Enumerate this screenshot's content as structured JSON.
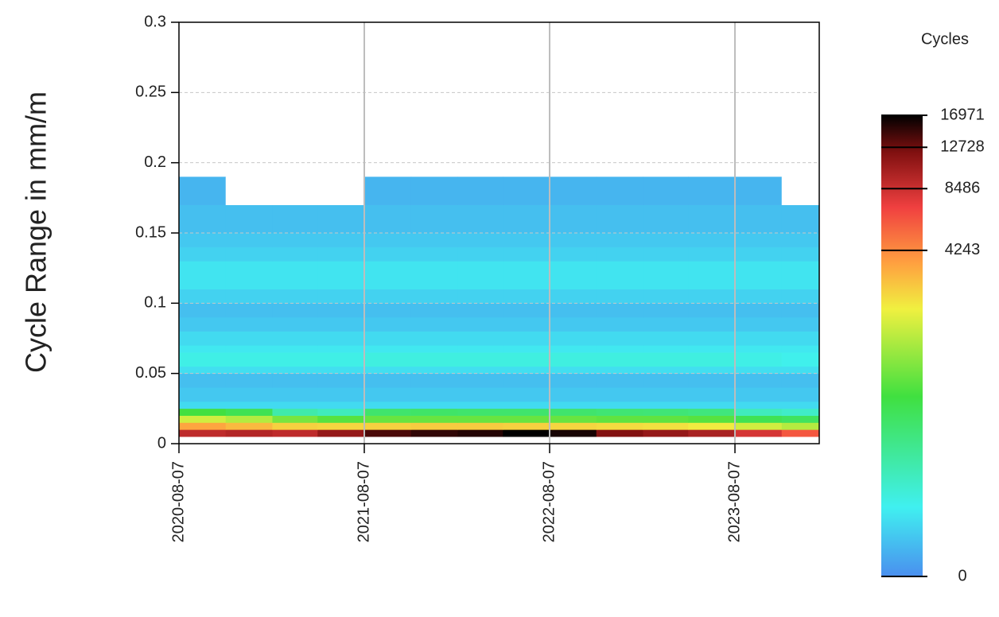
{
  "chart_data": {
    "type": "heatmap",
    "y_label": "Cycle Range in mm/m",
    "colorbar_title": "Cycles",
    "xlim": [
      "2020-08-07",
      "2024-01-20"
    ],
    "xticks": [
      "2020-08-07",
      "2021-08-07",
      "2022-08-07",
      "2023-08-07"
    ],
    "ylim": [
      0,
      0.3
    ],
    "yticks": [
      0,
      0.05,
      0.1,
      0.15,
      0.2,
      0.25,
      0.3
    ],
    "grid": true,
    "zlim": [
      0,
      16971
    ],
    "colorbar_ticks": [
      0,
      4243,
      8486,
      12728,
      16971
    ],
    "color_scale_power": 0.25,
    "colormap": [
      [
        0,
        "#4a8fef"
      ],
      [
        0.15,
        "#40f0f0"
      ],
      [
        0.39,
        "#40e040"
      ],
      [
        0.58,
        "#f0f040"
      ],
      [
        0.68,
        "#ffa040"
      ],
      [
        0.8,
        "#f04040"
      ],
      [
        0.92,
        "#801010"
      ],
      [
        1,
        "#000000"
      ]
    ],
    "xbins": [
      "2020-08-07",
      "2020-11-07",
      "2021-02-07",
      "2021-05-07",
      "2021-08-07",
      "2021-11-07",
      "2022-02-07",
      "2022-05-07",
      "2022-08-07",
      "2022-11-07",
      "2023-02-07",
      "2023-05-07",
      "2023-08-07",
      "2023-11-07",
      "2024-01-20"
    ],
    "ybins": [
      0.005,
      0.01,
      0.015,
      0.02,
      0.025,
      0.03,
      0.04,
      0.05,
      0.055,
      0.065,
      0.07,
      0.08,
      0.09,
      0.1,
      0.11,
      0.13,
      0.14,
      0.15,
      0.17,
      0.19
    ],
    "z": [
      [
        9000,
        9500,
        9000,
        11000,
        14000,
        15000,
        15500,
        16971,
        16000,
        12000,
        11000,
        10000,
        8000,
        6000
      ],
      [
        3500,
        3000,
        2500,
        2400,
        2500,
        2600,
        2600,
        2500,
        2400,
        2300,
        2200,
        2000,
        1500,
        1200
      ],
      [
        1500,
        1200,
        700,
        500,
        600,
        600,
        600,
        600,
        600,
        550,
        550,
        500,
        300,
        250
      ],
      [
        400,
        300,
        60,
        40,
        200,
        220,
        200,
        200,
        200,
        180,
        170,
        150,
        40,
        30
      ],
      [
        3,
        3,
        3,
        3,
        3,
        3,
        3,
        3,
        3,
        3,
        3,
        3,
        3,
        3
      ],
      [
        1,
        1,
        1,
        1,
        1,
        1,
        1,
        1,
        1,
        1,
        1,
        1,
        1,
        1
      ],
      [
        0.5,
        0.5,
        0.5,
        0.5,
        0.5,
        0.5,
        0.5,
        0.5,
        0.5,
        0.5,
        0.5,
        0.5,
        0.5,
        0.5
      ],
      [
        4,
        4,
        4,
        4,
        4,
        4,
        4,
        4,
        4,
        4,
        4,
        4,
        4,
        4
      ],
      [
        12,
        12,
        12,
        12,
        15,
        15,
        15,
        15,
        15,
        15,
        15,
        15,
        12,
        10
      ],
      [
        6,
        6,
        6,
        6,
        6,
        6,
        6,
        6,
        6,
        6,
        6,
        6,
        6,
        6
      ],
      [
        3,
        3,
        3,
        3,
        3,
        3,
        3,
        3,
        3,
        3,
        3,
        3,
        3,
        3
      ],
      [
        1,
        1,
        1,
        1,
        1,
        1,
        1,
        1,
        1,
        1,
        1,
        1,
        1,
        1
      ],
      [
        0.5,
        0.5,
        0.5,
        0.5,
        0.5,
        0.5,
        0.5,
        0.5,
        0.5,
        0.5,
        0.5,
        0.5,
        0.5,
        0.5
      ],
      [
        2,
        2,
        2,
        2,
        2,
        2,
        2,
        2,
        2,
        2,
        2,
        2,
        2,
        2
      ],
      [
        5,
        5,
        5,
        5,
        5,
        5,
        5,
        5,
        5,
        5,
        5,
        5,
        5,
        5
      ],
      [
        2,
        2,
        2,
        2,
        2,
        2,
        2,
        2,
        2,
        2,
        2,
        2,
        2,
        2
      ],
      [
        1,
        1,
        1,
        1,
        1,
        1,
        1,
        1,
        1,
        1,
        1,
        1,
        1,
        1
      ],
      [
        0.5,
        0.5,
        0.5,
        0.5,
        0.5,
        0.5,
        0.5,
        0.5,
        0.5,
        0.5,
        0.5,
        0.5,
        0.5,
        0.5
      ],
      [
        0.2,
        0,
        0,
        0,
        0.2,
        0.2,
        0.2,
        0.2,
        0.2,
        0.2,
        0.2,
        0.2,
        0.2,
        0
      ]
    ]
  }
}
